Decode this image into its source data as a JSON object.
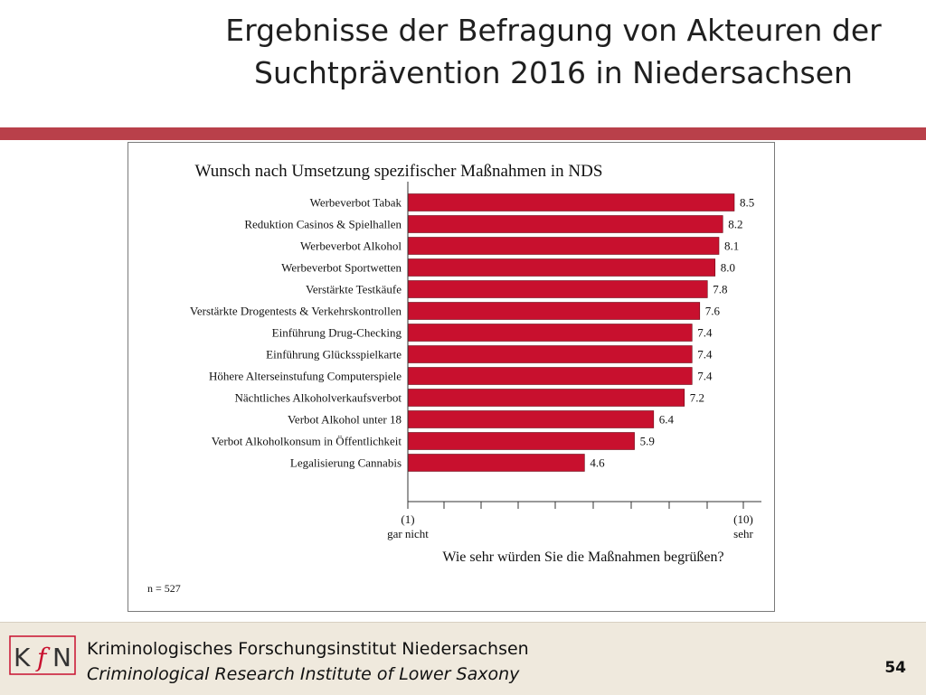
{
  "slide": {
    "title_line1": "Ergebnisse der Befragung von Akteuren der",
    "title_line2": "Suchtprävention 2016 in Niedersachsen",
    "page_number": "54"
  },
  "footer": {
    "logo_text": "KfN",
    "institute_de": "Kriminologisches Forschungsinstitut Niedersachsen",
    "institute_en": "Criminological Research Institute of Lower Saxony"
  },
  "colors": {
    "bar": "#c8102e",
    "band": "#b9404a",
    "footer_bg": "#efe9dd"
  },
  "chart_data": {
    "type": "bar",
    "orientation": "horizontal",
    "title": "Wunsch nach Umsetzung spezifischer Maßnahmen in NDS",
    "xlabel": "Wie sehr würden Sie die Maßnahmen begrüßen?",
    "xlim": [
      1,
      10
    ],
    "x_tick_low": "(1)",
    "x_tick_low_label": "gar nicht",
    "x_tick_high": "(10)",
    "x_tick_high_label": "sehr",
    "note": "n = 527",
    "grid": false,
    "categories": [
      "Werbeverbot Tabak",
      "Reduktion Casinos & Spielhallen",
      "Werbeverbot Alkohol",
      "Werbeverbot Sportwetten",
      "Verstärkte Testkäufe",
      "Verstärkte Drogentests & Verkehrskontrollen",
      "Einführung Drug-Checking",
      "Einführung Glücksspielkarte",
      "Höhere Alterseinstufung Computerspiele",
      "Nächtliches Alkoholverkaufsverbot",
      "Verbot Alkohol unter 18",
      "Verbot Alkoholkonsum in Öffentlichkeit",
      "Legalisierung Cannabis"
    ],
    "values": [
      8.5,
      8.2,
      8.1,
      8.0,
      7.8,
      7.6,
      7.4,
      7.4,
      7.4,
      7.2,
      6.4,
      5.9,
      4.6
    ],
    "value_labels": [
      "8.5",
      "8.2",
      "8.1",
      "8.0",
      "7.8",
      "7.6",
      "7.4",
      "7.4",
      "7.4",
      "7.2",
      "6.4",
      "5.9",
      "4.6"
    ]
  }
}
